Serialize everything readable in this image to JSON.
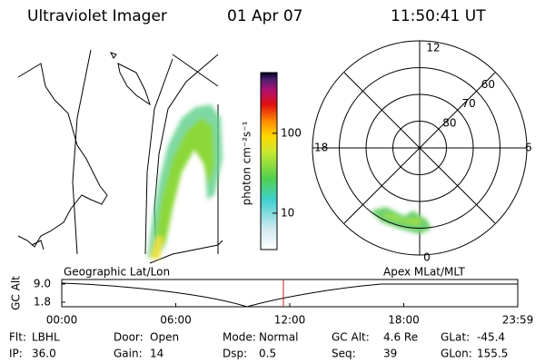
{
  "header": {
    "title": "Ultraviolet Imager",
    "date": "01 Apr 07",
    "time": "11:50:41 UT"
  },
  "colorbar": {
    "label": "photon cm⁻²s⁻¹",
    "lim": [
      3.5,
      575
    ],
    "log": true,
    "ticks": [
      10,
      100
    ]
  },
  "map_label": "Geographic Lat/Lon",
  "polar": {
    "label": "Apex MLat/MLT",
    "mlt_labels": [
      "12",
      "6",
      "0",
      "18"
    ],
    "lat_lim": [
      90,
      50
    ],
    "lat_ticks": [
      80,
      70,
      60
    ]
  },
  "altitude": {
    "ylabel": "GC Alt",
    "yticks": [
      {
        "value": 9.0,
        "label": "9.0"
      },
      {
        "value": 1.8,
        "label": "1.8"
      }
    ],
    "ylim": [
      1.8,
      9.0
    ],
    "xticks": [
      "00:00",
      "06:00",
      "12:00",
      "18:00",
      "23:59"
    ]
  },
  "info": [
    [
      [
        "Flt:",
        "LBHL"
      ],
      [
        "Door:",
        "Open"
      ],
      [
        "Mode:",
        "Normal"
      ],
      [
        "GC Alt:",
        "4.6 Re"
      ],
      [
        "GLat:",
        "-45.4"
      ]
    ],
    [
      [
        "IP:",
        "36.0"
      ],
      [
        "Gain:",
        "14"
      ],
      [
        "Dsp:",
        "0.5"
      ],
      [
        "Seq:",
        "39"
      ],
      [
        "GLon:",
        "155.5"
      ]
    ]
  ]
}
